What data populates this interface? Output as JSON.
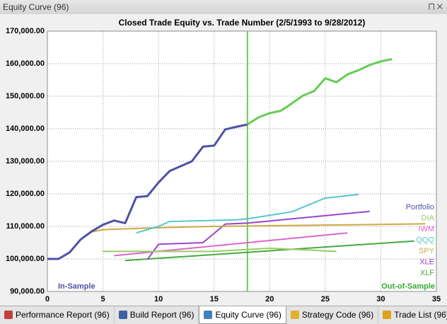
{
  "window": {
    "title": "Equity Curve (96)"
  },
  "tabs": [
    {
      "label": "Performance Report (96)",
      "selected": false
    },
    {
      "label": "Build Report (96)",
      "selected": false
    },
    {
      "label": "Equity Curve (96)",
      "selected": true
    },
    {
      "label": "Strategy Code (96)",
      "selected": false
    },
    {
      "label": "Trade List (96)",
      "selected": false
    }
  ],
  "chart_data": {
    "type": "line",
    "title": "Closed Trade Equity vs. Trade Number (2/5/1993 to 9/28/2012)",
    "xlim": [
      0,
      35
    ],
    "xticks": [
      0,
      5,
      10,
      15,
      20,
      25,
      30,
      35
    ],
    "ylim": [
      90000,
      170000
    ],
    "yticks": [
      {
        "value": 90000,
        "label": "90,000.00"
      },
      {
        "value": 100000,
        "label": "100,000.00"
      },
      {
        "value": 110000,
        "label": "110,000.00"
      },
      {
        "value": 120000,
        "label": "120,000.00"
      },
      {
        "value": 130000,
        "label": "130,000.00"
      },
      {
        "value": 140000,
        "label": "140,000.00"
      },
      {
        "value": 150000,
        "label": "150,000.00"
      },
      {
        "value": 160000,
        "label": "160,000.00"
      },
      {
        "value": 170000,
        "label": "170,000.00"
      }
    ],
    "grid": true,
    "divider_x": 18,
    "divider_color": "#66cc55",
    "series": [
      {
        "name": "Portfolio",
        "color": "#5050a8",
        "out_color": "#66cc55",
        "x": [
          0,
          1,
          2,
          3,
          4,
          5,
          6,
          7,
          8,
          9,
          10,
          11,
          12,
          13,
          14,
          15,
          16,
          17,
          18,
          19,
          20,
          21,
          22,
          23,
          24,
          25,
          26,
          27,
          28,
          29,
          30,
          31
        ],
        "values": [
          100000,
          100000,
          102000,
          106000,
          108500,
          110500,
          111800,
          111000,
          119000,
          119300,
          123500,
          127000,
          128500,
          130000,
          134500,
          134800,
          139800,
          140600,
          141300,
          143500,
          144800,
          145500,
          147800,
          150200,
          151600,
          155500,
          154300,
          156700,
          158000,
          159600,
          160700,
          161400
        ]
      },
      {
        "name": "DIA",
        "color": "#99cc66",
        "x": [
          5,
          15,
          20,
          26
        ],
        "values": [
          102300,
          102300,
          103300,
          102300
        ]
      },
      {
        "name": "IWM",
        "color": "#dd66cc",
        "x": [
          6,
          27
        ],
        "values": [
          101000,
          108000
        ]
      },
      {
        "name": "QQQ",
        "color": "#55c8cc",
        "x": [
          8,
          10,
          11,
          17,
          18,
          22,
          25,
          28
        ],
        "values": [
          108000,
          110000,
          111500,
          112000,
          112300,
          114500,
          118700,
          119800
        ]
      },
      {
        "name": "SPY",
        "color": "#ccaa44",
        "x": [
          0,
          1,
          2,
          3,
          4,
          5,
          10,
          15,
          20,
          25,
          30,
          34
        ],
        "values": [
          100000,
          100000,
          102000,
          106000,
          108300,
          109000,
          109600,
          110000,
          110200,
          110400,
          110600,
          110800
        ]
      },
      {
        "name": "XLE",
        "color": "#9944cc",
        "x": [
          9,
          10,
          14,
          16,
          18,
          29
        ],
        "values": [
          99800,
          104500,
          105000,
          110700,
          111000,
          114600
        ]
      },
      {
        "name": "XLF",
        "color": "#44aa44",
        "x": [
          7,
          33
        ],
        "values": [
          99500,
          105500
        ]
      }
    ],
    "annotations": [
      {
        "text": "In-Sample",
        "color": "#5050a8"
      },
      {
        "text": "Out-of-Sample",
        "color": "#33aa33"
      }
    ]
  }
}
